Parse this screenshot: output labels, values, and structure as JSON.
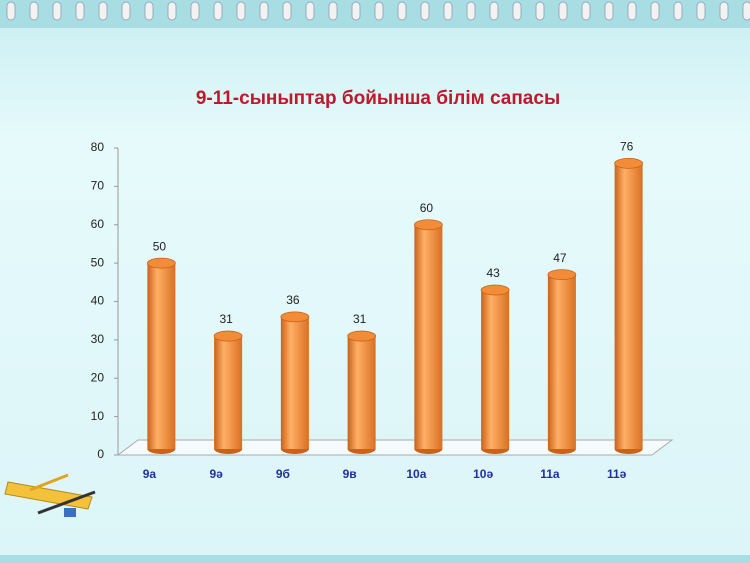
{
  "chart_data": {
    "type": "bar",
    "title": "9-11-сыныптар бойынша білім сапасы",
    "categories": [
      "9а",
      "9ә",
      "9б",
      "9в",
      "10а",
      "10ә",
      "11а",
      "11ә"
    ],
    "values": [
      50,
      31,
      36,
      31,
      60,
      43,
      47,
      76
    ],
    "color": "#f28c38",
    "ylim": [
      0,
      80
    ],
    "yticks": [
      0,
      10,
      20,
      30,
      40,
      50,
      60,
      70,
      80
    ],
    "grid": false
  }
}
